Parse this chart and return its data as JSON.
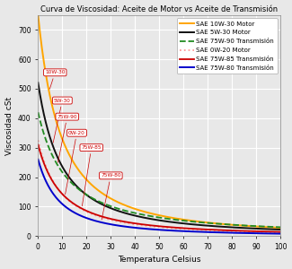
{
  "title": "Curva de Viscosidad: Aceite de Motor vs Aceite de Transmisión",
  "xlabel": "Temperatura Celsius",
  "ylabel": "Viscosidad cSt",
  "xlim": [
    0,
    100
  ],
  "ylim": [
    0,
    750
  ],
  "yticks": [
    0,
    100,
    200,
    300,
    400,
    500,
    600,
    700
  ],
  "xticks": [
    0,
    10,
    20,
    30,
    40,
    50,
    60,
    70,
    80,
    90,
    100
  ],
  "series": [
    {
      "name": "SAE 10W-30 Motor",
      "color": "#FFA500",
      "linestyle": "-",
      "linewidth": 1.4,
      "A": 3500,
      "B": 3.5,
      "T0": 273,
      "label_text": "10W-30",
      "ann_x": 7,
      "ann_y": 555,
      "arr_x": 4.5,
      "arr_y": 620
    },
    {
      "name": "SAE 5W-30 Motor",
      "color": "#111111",
      "linestyle": "-",
      "linewidth": 1.4,
      "A": 2200,
      "B": 3.5,
      "T0": 273,
      "label_text": "5W-30",
      "ann_x": 10,
      "ann_y": 460,
      "arr_x": 6,
      "arr_y": 490
    },
    {
      "name": "SAE 75W-90 Transmisión",
      "color": "#228B22",
      "linestyle": "--",
      "linewidth": 1.3,
      "A": 1700,
      "B": 3.5,
      "T0": 273,
      "label_text": "75W-90",
      "ann_x": 12,
      "ann_y": 405,
      "arr_x": 8,
      "arr_y": 415
    },
    {
      "name": "SAE 0W-20 Motor",
      "color": "#FF9999",
      "linestyle": ":",
      "linewidth": 1.3,
      "A": 1300,
      "B": 3.5,
      "T0": 273,
      "label_text": "0W-20",
      "ann_x": 16,
      "ann_y": 350,
      "arr_x": 11,
      "arr_y": 345
    },
    {
      "name": "SAE 75W-85 Transmisión",
      "color": "#CC0000",
      "linestyle": "-",
      "linewidth": 1.3,
      "A": 1100,
      "B": 3.5,
      "T0": 273,
      "label_text": "75W-85",
      "ann_x": 22,
      "ann_y": 300,
      "arr_x": 18,
      "arr_y": 290
    },
    {
      "name": "SAE 75W-80 Transmisión",
      "color": "#0000CC",
      "linestyle": "-",
      "linewidth": 1.4,
      "A": 800,
      "B": 3.5,
      "T0": 273,
      "label_text": "75W-80",
      "ann_x": 30,
      "ann_y": 205,
      "arr_x": 26,
      "arr_y": 200
    }
  ],
  "background_color": "#e8e8e8",
  "plot_bg_color": "#e8e8e8",
  "grid_color": "#ffffff",
  "title_fontsize": 6.0,
  "axis_label_fontsize": 6.5,
  "tick_fontsize": 5.5,
  "legend_fontsize": 5.0,
  "ann_fontsize": 4.2
}
